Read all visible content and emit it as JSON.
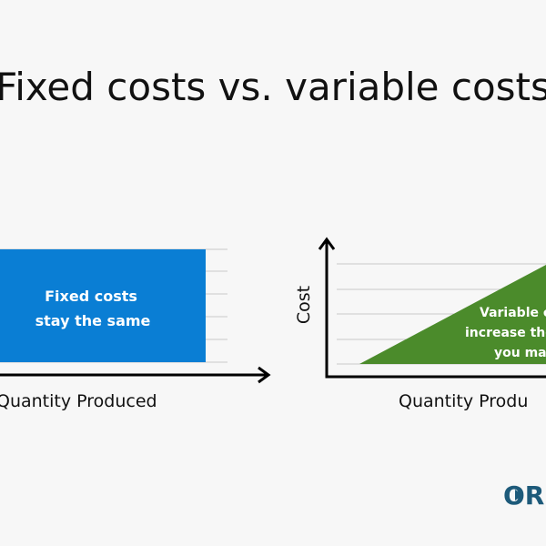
{
  "header": {
    "title": "Fixed costs vs. variable costs"
  },
  "fixed_panel": {
    "label_lines": [
      "Fixed costs",
      "stay the same"
    ],
    "x_axis": "Quantity Produced"
  },
  "variable_panel": {
    "label_lines": [
      "Variable c",
      "increase the",
      "you ma"
    ],
    "x_axis": "Quantity Produ",
    "y_axis": "Cost"
  },
  "logo": {
    "text": "OR"
  }
}
